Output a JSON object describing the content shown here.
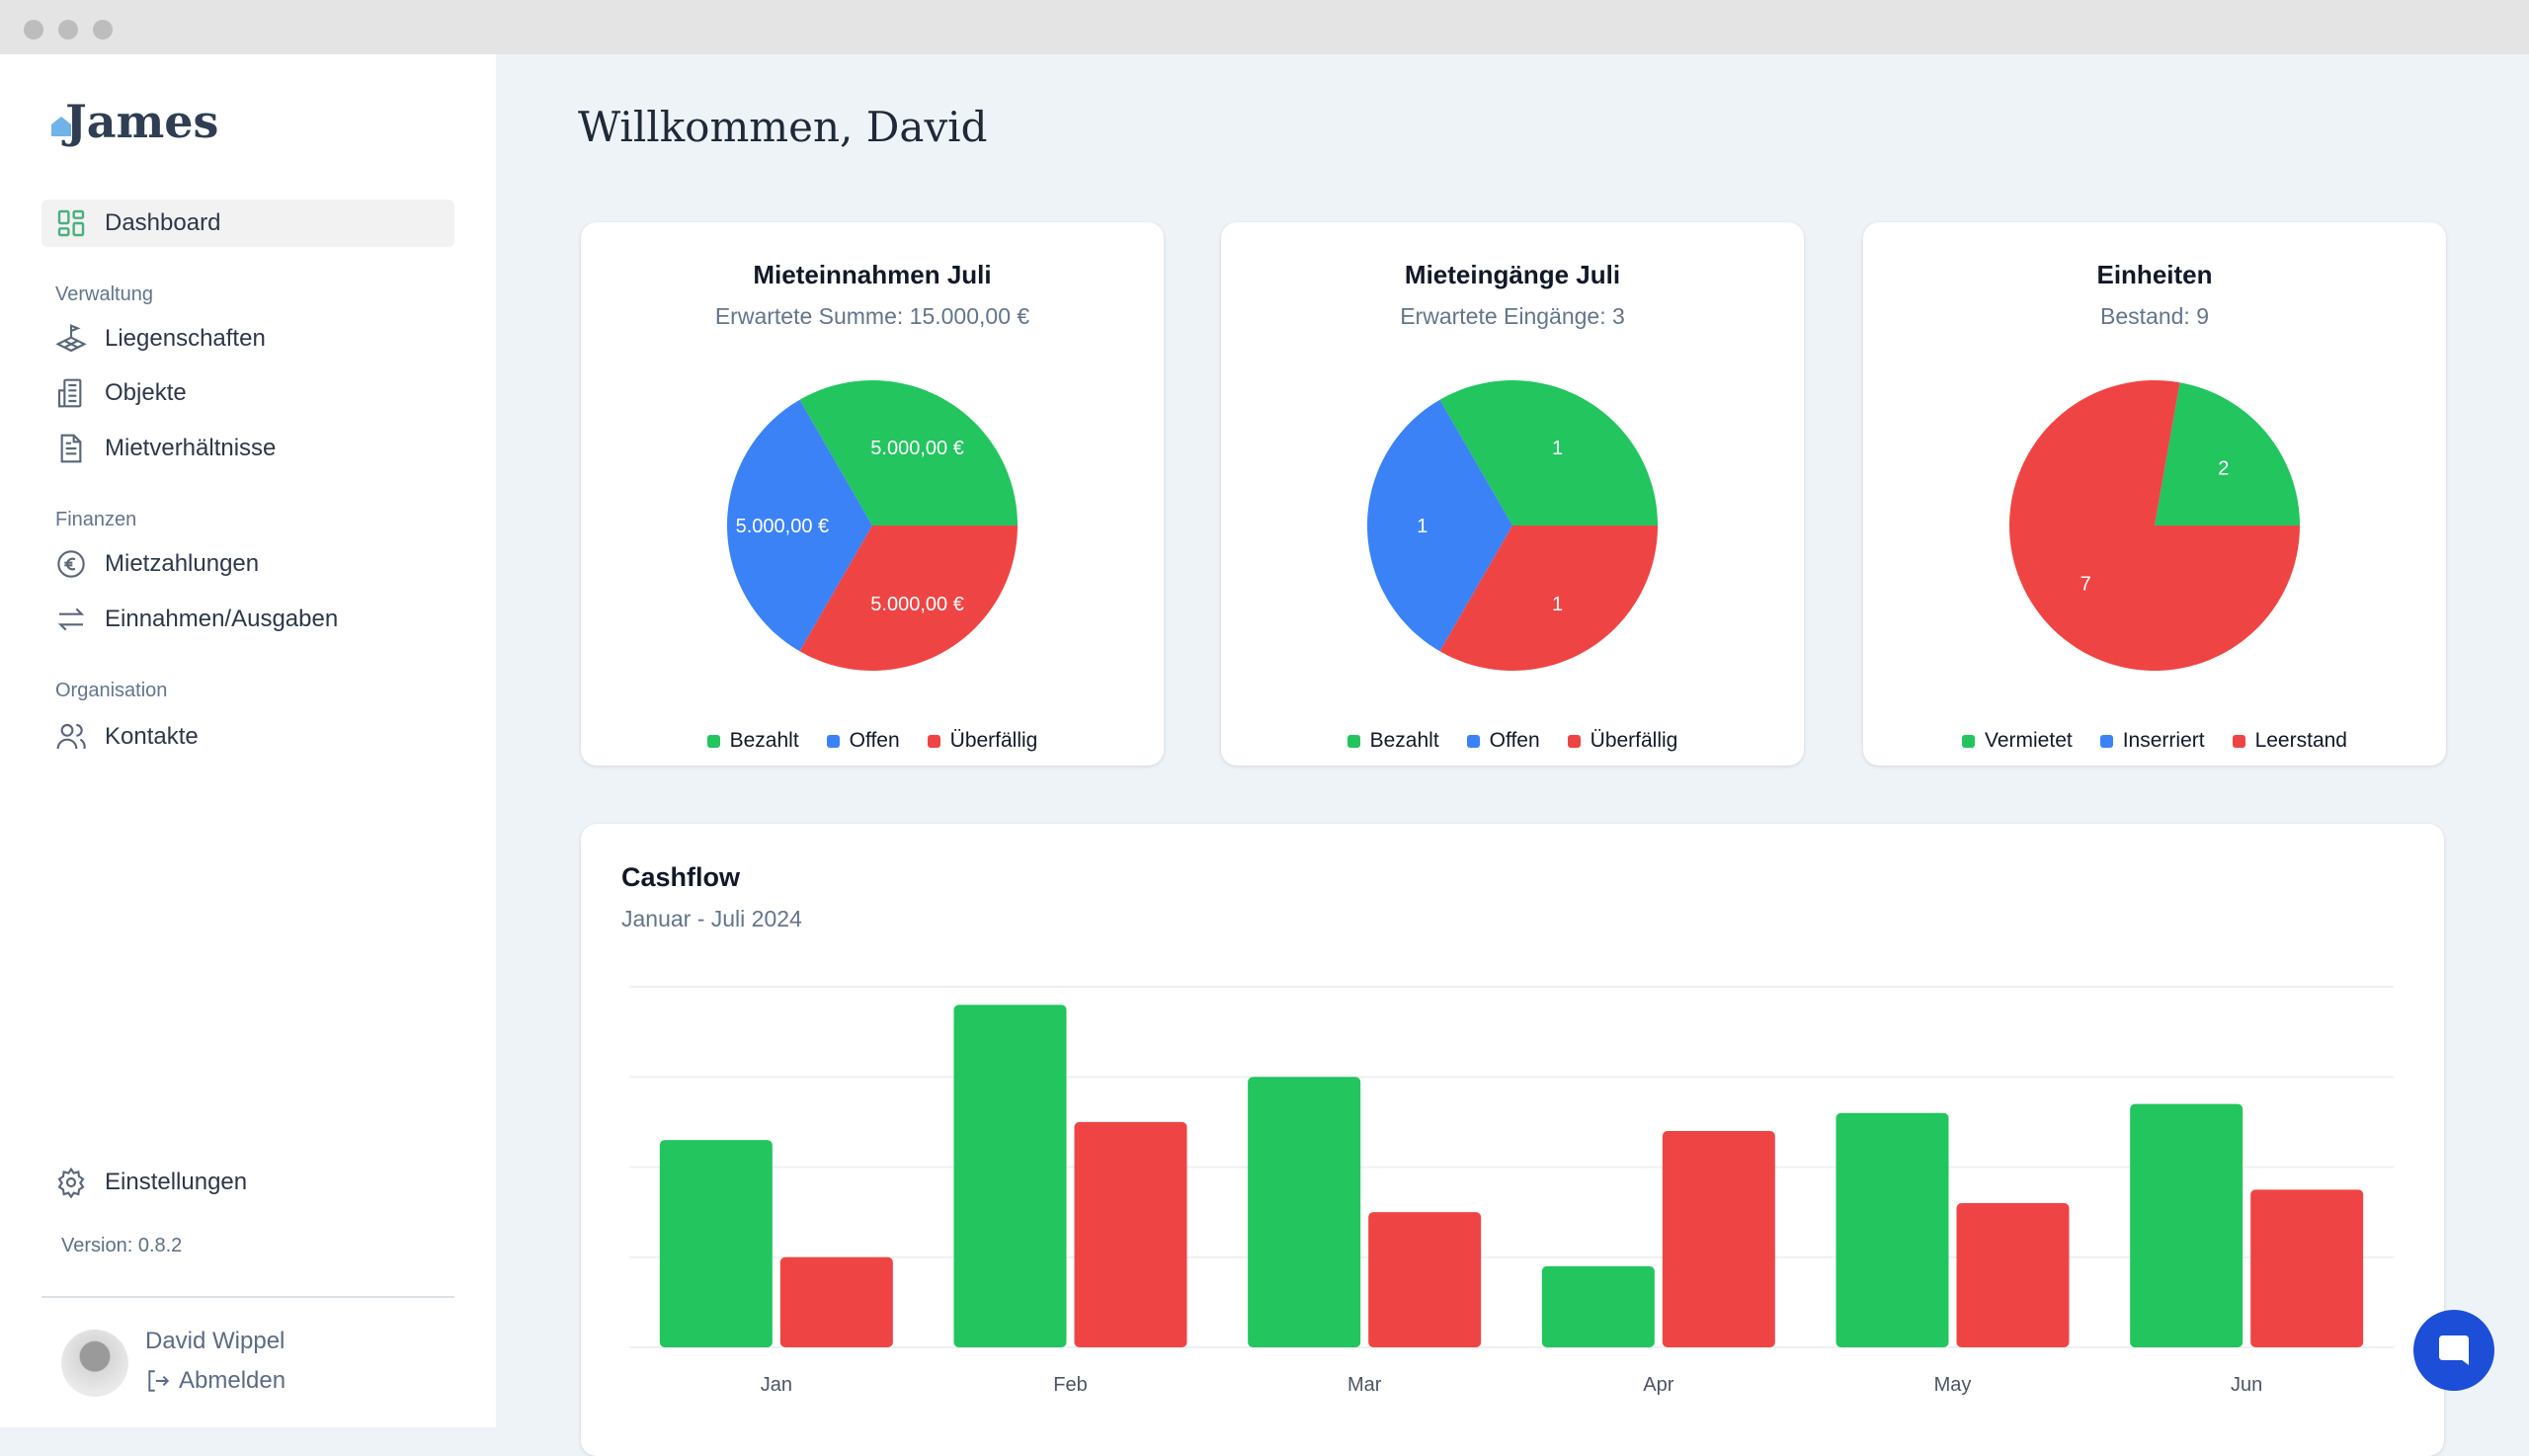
{
  "app": {
    "logo": "James"
  },
  "sidebar": {
    "dashboard": "Dashboard",
    "sections": [
      {
        "label": "Verwaltung",
        "items": [
          "Liegenschaften",
          "Objekte",
          "Mietverhältnisse"
        ]
      },
      {
        "label": "Finanzen",
        "items": [
          "Mietzahlungen",
          "Einnahmen/Ausgaben"
        ]
      },
      {
        "label": "Organisation",
        "items": [
          "Kontakte"
        ]
      }
    ],
    "settings": "Einstellungen",
    "version": "Version: 0.8.2",
    "user": "David Wippel",
    "logout": "Abmelden"
  },
  "main": {
    "greeting": "Willkommen, David"
  },
  "colors": {
    "green": "#22c55e",
    "blue": "#3b82f6",
    "red": "#ef4444"
  },
  "chart_data": [
    {
      "type": "pie",
      "title": "Mieteinnahmen Juli",
      "subtitle": "Erwartete Summe: 15.000,00 €",
      "labels": [
        "Bezahlt",
        "Offen",
        "Überfällig"
      ],
      "values": [
        5000,
        5000,
        5000
      ],
      "data_labels": [
        "5.000,00 €",
        "5.000,00 €",
        "5.000,00 €"
      ],
      "legend": "bottom"
    },
    {
      "type": "pie",
      "title": "Mieteingänge Juli",
      "subtitle": "Erwartete Eingänge: 3",
      "labels": [
        "Bezahlt",
        "Offen",
        "Überfällig"
      ],
      "values": [
        1,
        1,
        1
      ],
      "data_labels": [
        "1",
        "1",
        "1"
      ],
      "legend": "bottom"
    },
    {
      "type": "pie",
      "title": "Einheiten",
      "subtitle": "Bestand: 9",
      "labels": [
        "Vermietet",
        "Inserriert",
        "Leerstand"
      ],
      "values": [
        2,
        0,
        7
      ],
      "data_labels": [
        "2",
        "",
        "7"
      ],
      "legend": "bottom"
    },
    {
      "type": "bar",
      "title": "Cashflow",
      "subtitle": "Januar - Juli 2024",
      "categories": [
        "Jan",
        "Feb",
        "Mar",
        "Apr",
        "May",
        "Jun"
      ],
      "series": [
        {
          "values": [
            2.3,
            3.8,
            3.0,
            0.9,
            2.6,
            2.7
          ],
          "color": "#22c55e"
        },
        {
          "values": [
            1.0,
            2.5,
            1.5,
            2.4,
            1.6,
            1.75
          ],
          "color": "#ef4444"
        }
      ],
      "ylim": [
        0,
        4
      ],
      "grid": true
    }
  ]
}
